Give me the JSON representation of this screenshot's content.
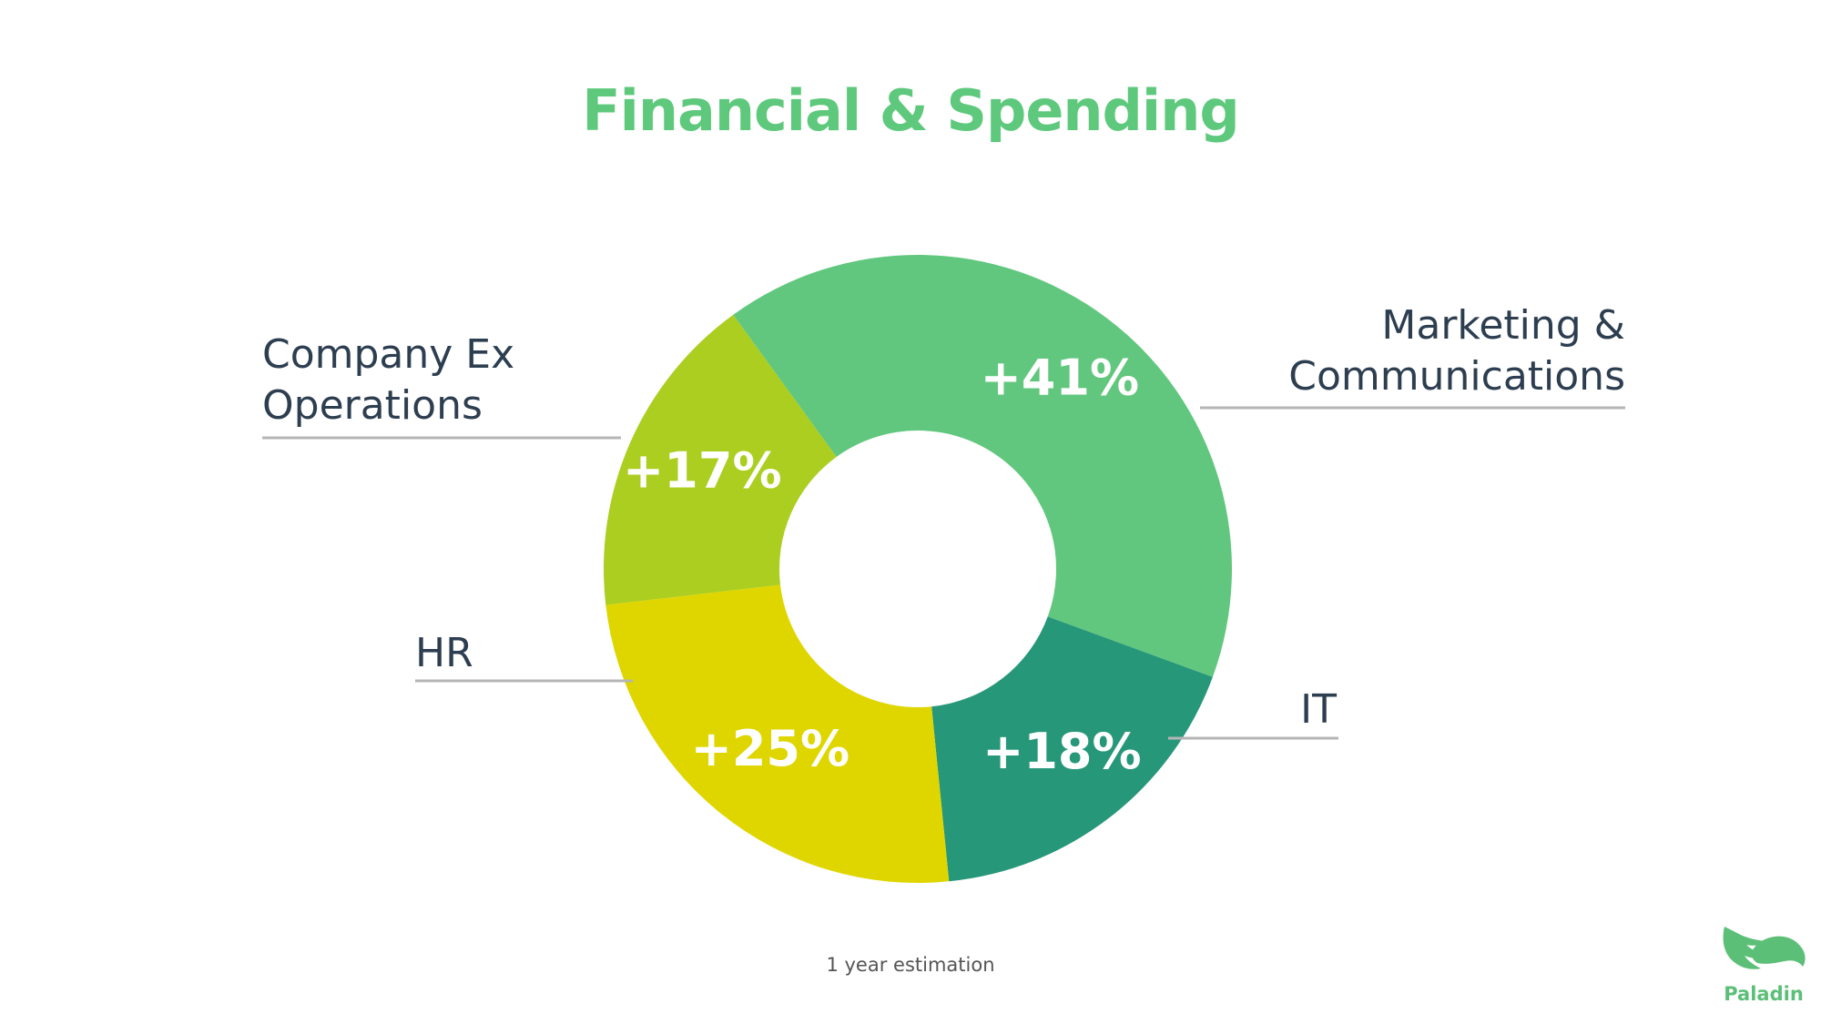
{
  "title": "Financial & Spending",
  "note": "1 year estimation",
  "brand": {
    "name": "Paladin",
    "icon": "paladin-logo-icon",
    "color": "#5cbf78"
  },
  "colors": {
    "title": "#5ec97c",
    "label": "#2d3e50",
    "leader": "#b5b5b5",
    "value_text": "#ffffff"
  },
  "chart_data": {
    "type": "pie",
    "donut": true,
    "title": "Financial & Spending",
    "slices": [
      {
        "label": "Marketing & Communications",
        "label_lines": [
          "Marketing &",
          "Communications"
        ],
        "display": "+41%",
        "value": 41,
        "color": "#62c77e"
      },
      {
        "label": "IT",
        "label_lines": [
          "IT"
        ],
        "display": "+18%",
        "value": 18,
        "color": "#27977a"
      },
      {
        "label": "HR",
        "label_lines": [
          "HR"
        ],
        "display": "+25%",
        "value": 25,
        "color": "#dfd600"
      },
      {
        "label": "Company Ex Operations",
        "label_lines": [
          "Company Ex",
          "Operations"
        ],
        "display": "+17%",
        "value": 17,
        "color": "#abce20"
      }
    ],
    "legend": "none"
  }
}
